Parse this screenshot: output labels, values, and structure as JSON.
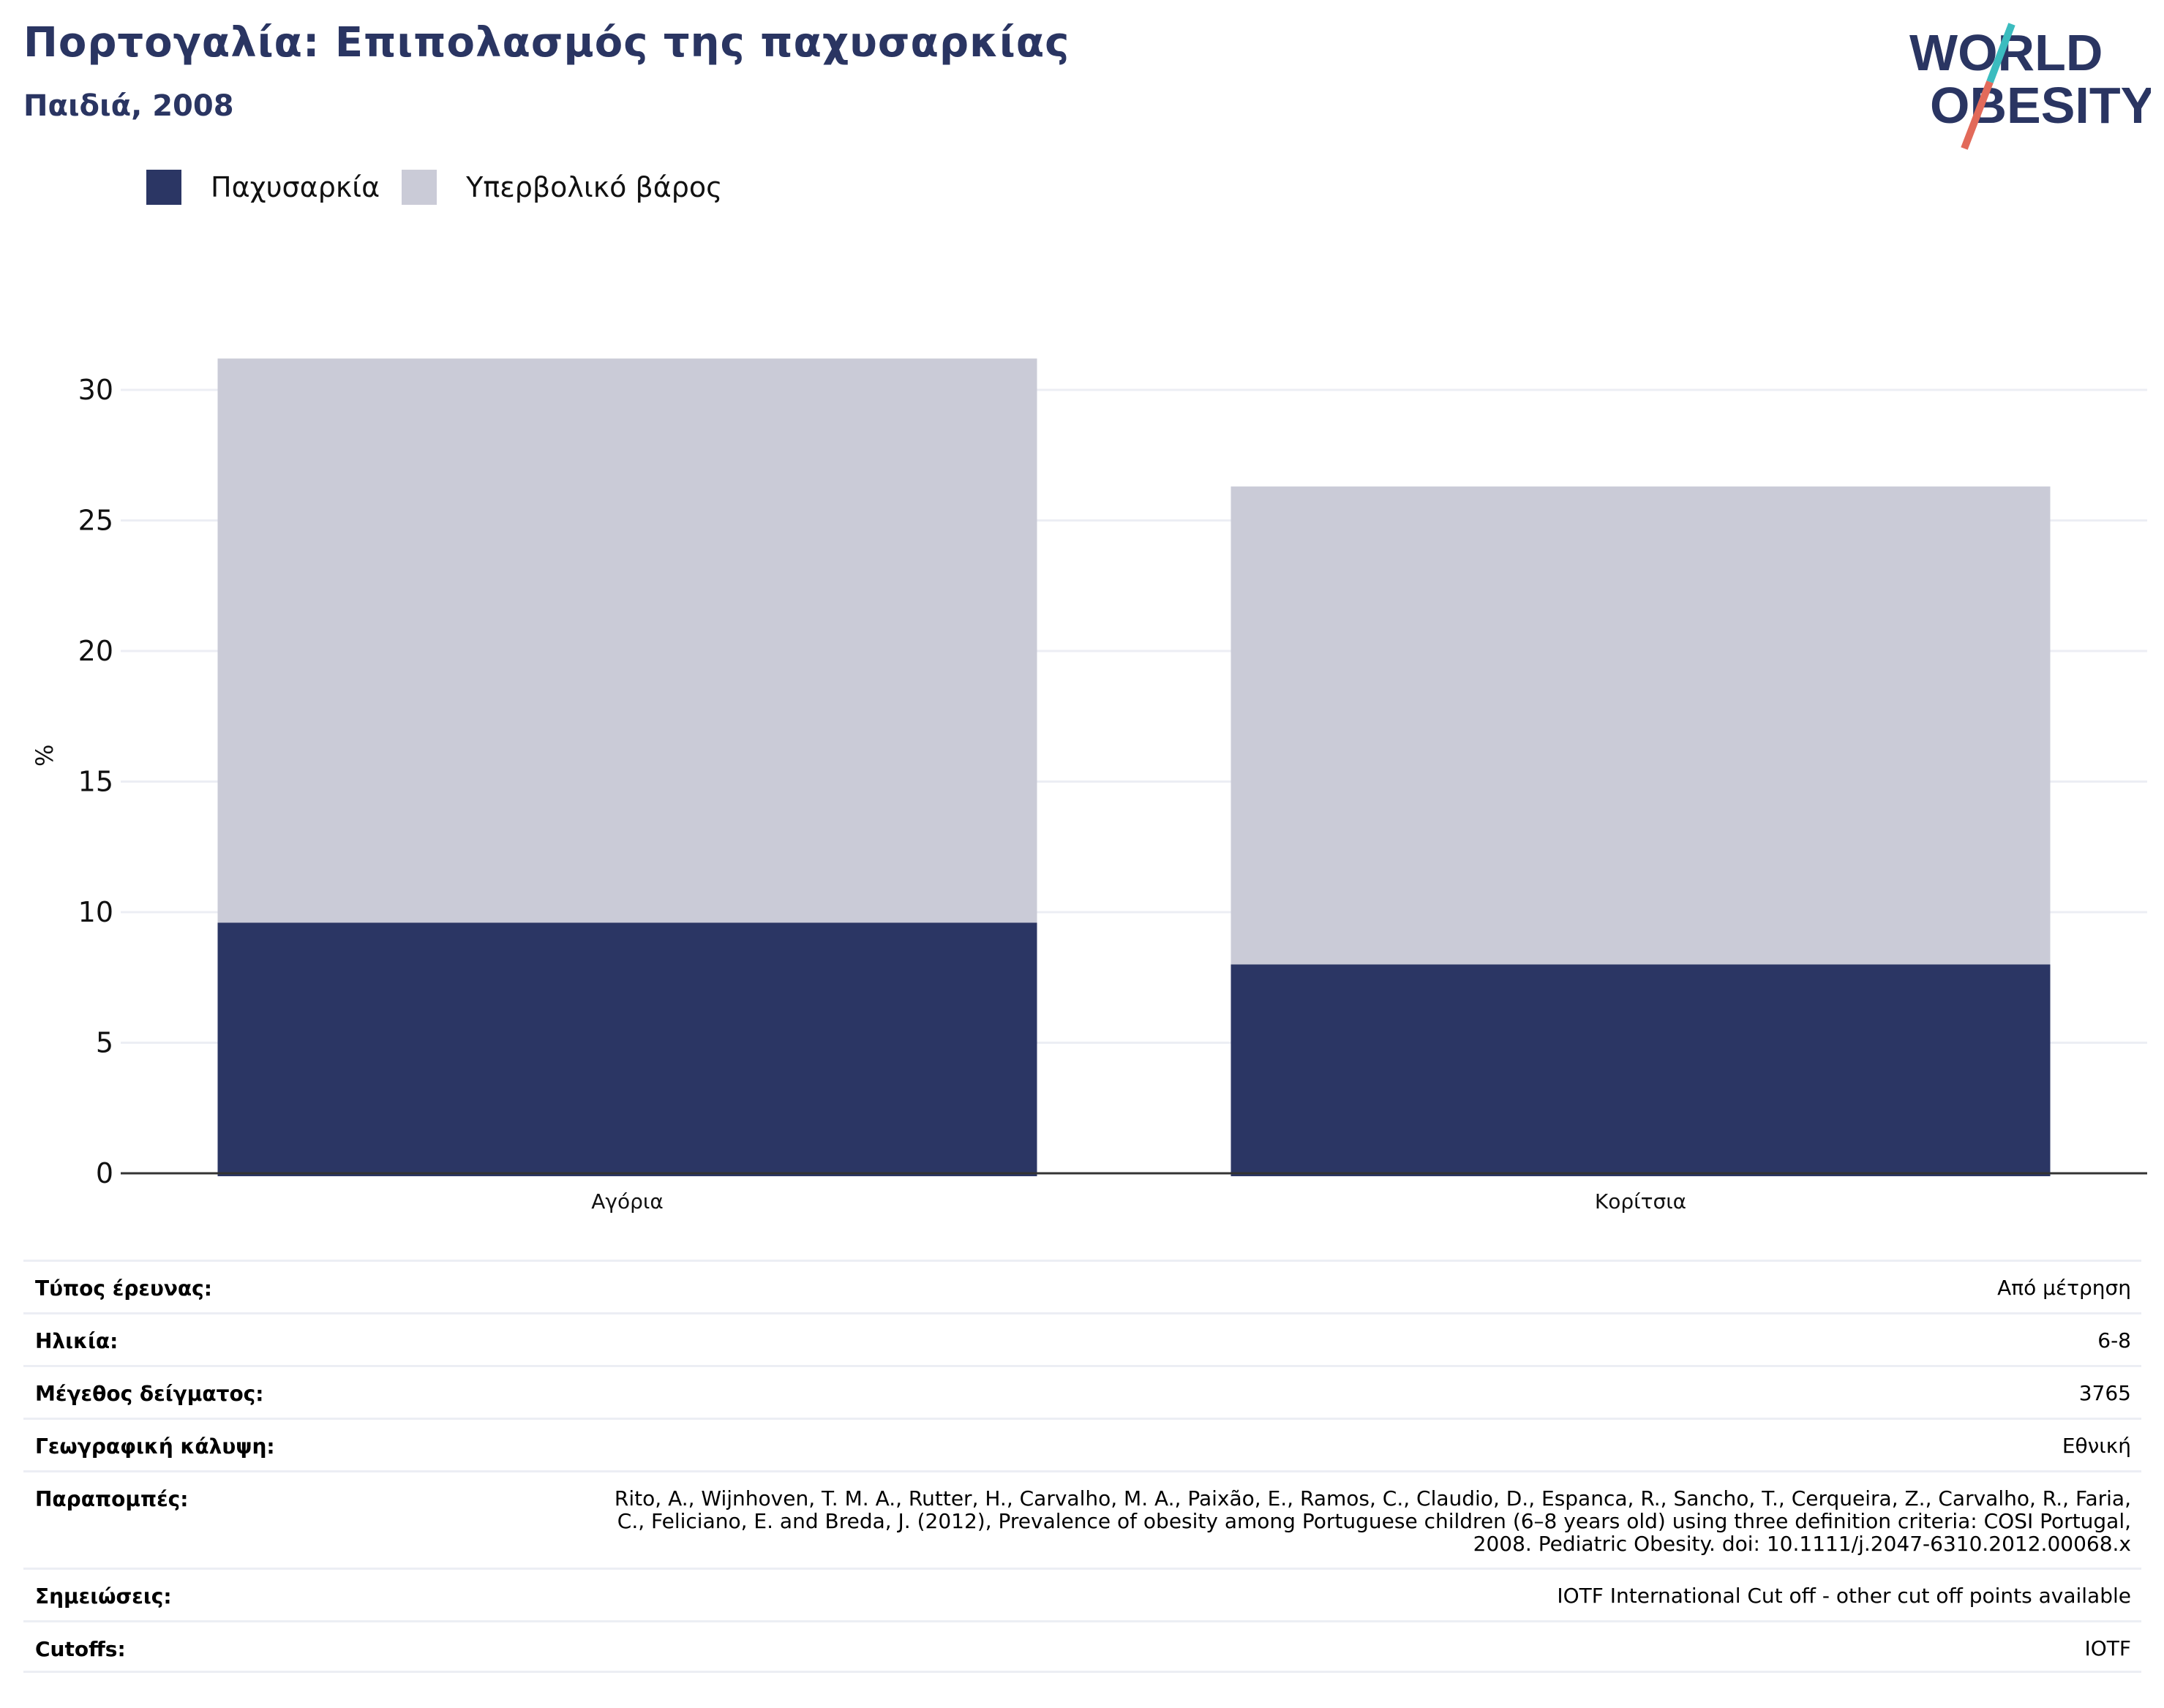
{
  "header": {
    "title": "Πορτογαλία: Επιπολασμός της παχυσαρκίας",
    "subtitle": "Παιδιά, 2008"
  },
  "logo": {
    "line1": "WORLD",
    "line2": "OBESITY",
    "colors": {
      "text": "#2a3562",
      "accent_teal": "#3bbcbf",
      "accent_red": "#e26a5a"
    }
  },
  "colors": {
    "obesity": "#2b3664",
    "overweight": "#cacbd7",
    "grid": "#eceef4",
    "axis": "#333333"
  },
  "chart_data": {
    "type": "bar",
    "stacked": true,
    "categories": [
      "Αγόρια",
      "Κορίτσια"
    ],
    "series": [
      {
        "name": "Παχυσαρκία",
        "values": [
          9.6,
          8.0
        ],
        "color": "#2b3664"
      },
      {
        "name": "Υπερβολικό βάρος",
        "values": [
          21.6,
          18.3
        ],
        "color": "#cacbd7"
      }
    ],
    "ylabel": "%",
    "ylim": [
      0,
      32
    ],
    "yticks": [
      0,
      5,
      10,
      15,
      20,
      25,
      30
    ],
    "grid": true,
    "legend_position": "top-left"
  },
  "info": [
    {
      "label": "Τύπος έρευνας:",
      "value": "Από μέτρηση"
    },
    {
      "label": "Ηλικία:",
      "value": "6-8"
    },
    {
      "label": "Μέγεθος δείγματος:",
      "value": "3765"
    },
    {
      "label": "Γεωγραφική κάλυψη:",
      "value": "Εθνική"
    },
    {
      "label": "Παραπομπές:",
      "value": "Rito, A., Wijnhoven, T. M. A., Rutter, H., Carvalho, M. A., Paixão, E., Ramos, C., Claudio, D., Espanca, R., Sancho, T., Cerqueira, Z., Carvalho, R., Faria, C., Feliciano, E. and Breda, J. (2012), Prevalence of obesity among Portuguese children (6–8 years old) using three definition criteria: COSI Portugal, 2008. Pediatric Obesity. doi: 10.1111/j.2047-6310.2012.00068.x"
    },
    {
      "label": "Σημειώσεις:",
      "value": "IOTF International Cut off - other cut off points available"
    },
    {
      "label": "Cutoffs:",
      "value": "IOTF"
    }
  ]
}
